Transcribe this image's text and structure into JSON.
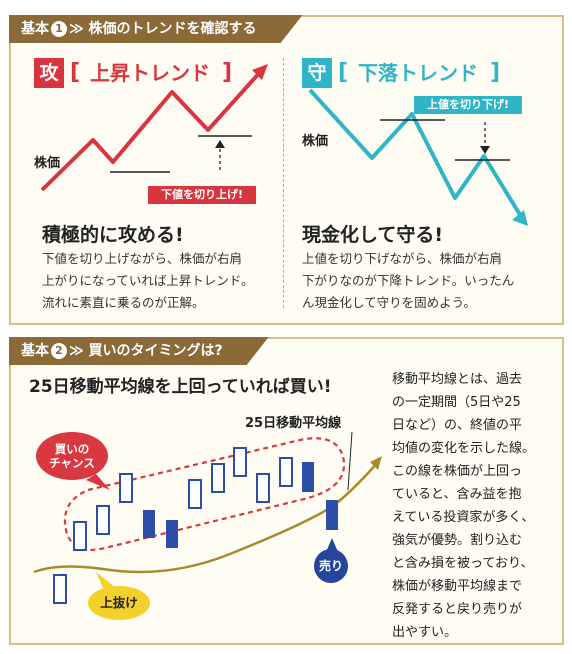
{
  "section1": {
    "header": {
      "prefix": "基本",
      "num": "1",
      "title": "株価のトレンドを確認する"
    },
    "left": {
      "tag": "攻",
      "bracket_open": "[",
      "trend_title": "上昇トレンド",
      "bracket_close": "]",
      "stock_label": "株価",
      "callout": "下値を切り上げ!",
      "headline": "積極的に攻める!",
      "body": [
        "下値を切り上げながら、株価が右肩",
        "上がりになっていれば上昇トレンド。",
        "流れに素直に乗るのが正解。"
      ],
      "color": "#d93540"
    },
    "right": {
      "tag": "守",
      "bracket_open": "[",
      "trend_title": "下落トレンド",
      "bracket_close": "]",
      "stock_label": "株価",
      "callout": "上値を切り下げ!",
      "headline": "現金化して守る!",
      "body": [
        "上値を切り下げながら、株価が右肩",
        "下がりなのが下降トレンド。いったん",
        "ん現金化して守りを固めよう。"
      ],
      "color": "#2fb5c7"
    }
  },
  "section2": {
    "header": {
      "prefix": "基本",
      "num": "2",
      "title": "買いのタイミングは?"
    },
    "main_title": "25日移動平均線を上回っていれば買い!",
    "ma_label": "25日移動平均線",
    "buy_bubble": [
      "買いの",
      "チャンス"
    ],
    "breakout_bubble": "上抜け",
    "sell_bubble": "売り",
    "description": [
      "移動平均線とは、過去",
      "の一定期間（5日や25",
      "日など）の、終値の平",
      "均値の変化を示した線。",
      "この線を株価が上回っ",
      "ていると、含み益を抱",
      "えている投資家が多く、",
      "強気が優勢。割り込む",
      "と含み損を被っており、",
      "株価が移動平均線まで",
      "反発すると戻り売りが",
      "出やすい。"
    ],
    "colors": {
      "candle": "#2d4ea8",
      "ma_line": "#a88c2c",
      "highlight": "#d8383f"
    }
  }
}
